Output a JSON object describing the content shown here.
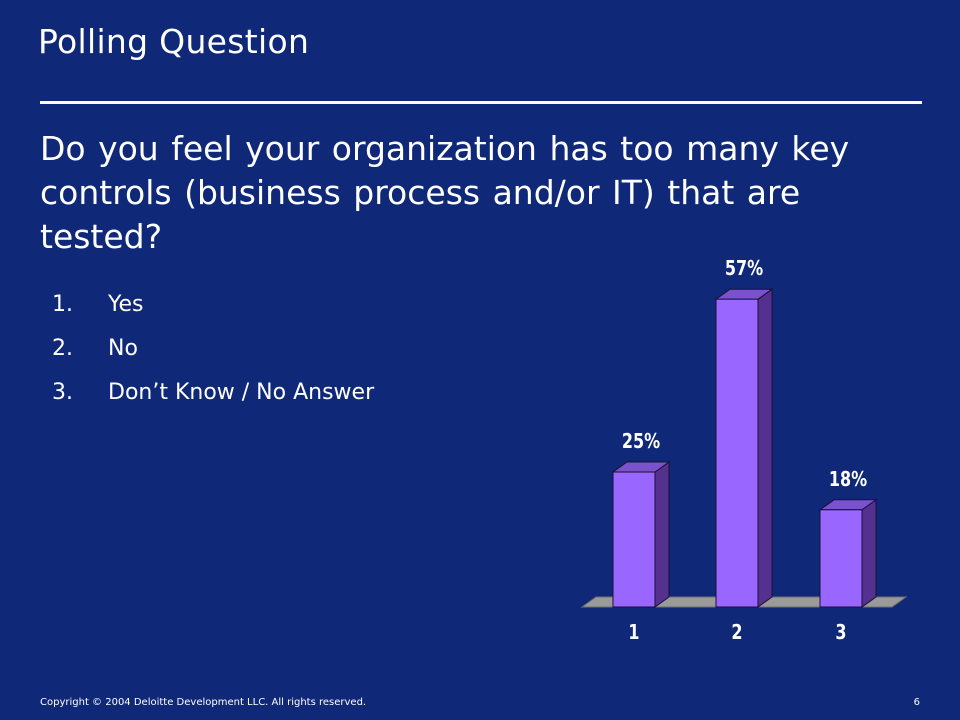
{
  "slide": {
    "title": "Polling Question",
    "question": "Do you feel your organization has too many key controls (business process and/or IT) that are tested?",
    "options": [
      {
        "number": "1.",
        "label": "Yes"
      },
      {
        "number": "2.",
        "label": "No"
      },
      {
        "number": "3.",
        "label": "Don’t Know / No Answer"
      }
    ]
  },
  "chart_data": {
    "type": "bar",
    "categories": [
      "1",
      "2",
      "3"
    ],
    "values": [
      25,
      57,
      18
    ],
    "data_labels": [
      "25%",
      "57%",
      "18%"
    ],
    "unit": "%",
    "ylim": [
      0,
      60
    ],
    "grid": false,
    "legend": "none",
    "colors": {
      "bar_front": "#9966ff",
      "bar_side": "#55318f",
      "bar_top": "#7a52cc",
      "floor": "#9a9a9a",
      "floor_edge": "#6e6e6e",
      "bar_outline": "#1a1033"
    }
  },
  "footer": {
    "copyright": "Copyright © 2004 Deloitte Development LLC. All rights reserved.",
    "page_number": "6"
  }
}
